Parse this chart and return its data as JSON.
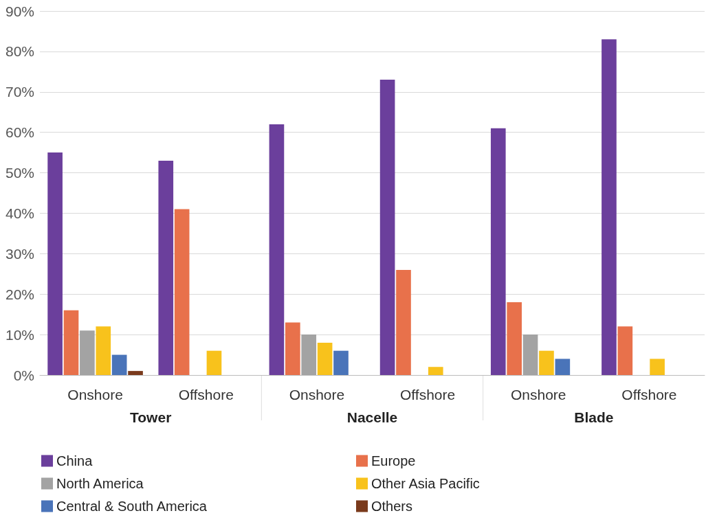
{
  "chart_data": {
    "type": "bar",
    "categories": [
      "Onshore",
      "Offshore",
      "Onshore",
      "Offshore",
      "Onshore",
      "Offshore"
    ],
    "annotations": [
      "Tower",
      "Nacelle",
      "Blade"
    ],
    "series": [
      {
        "name": "China",
        "color": "#6b3f9c",
        "values": [
          55,
          53,
          62,
          73,
          61,
          83
        ]
      },
      {
        "name": "Europe",
        "color": "#e8714b",
        "values": [
          16,
          41,
          13,
          26,
          18,
          12
        ]
      },
      {
        "name": "North America",
        "color": "#a3a3a3",
        "values": [
          11,
          null,
          10,
          null,
          10,
          null
        ]
      },
      {
        "name": "Other Asia Pacific",
        "color": "#f8c21c",
        "values": [
          12,
          6,
          8,
          2,
          6,
          4
        ]
      },
      {
        "name": "Central & South America",
        "color": "#4a74b9",
        "values": [
          5,
          null,
          6,
          null,
          4,
          null
        ]
      },
      {
        "name": "Others",
        "color": "#7a3a1c",
        "values": [
          1,
          null,
          null,
          null,
          null,
          null
        ]
      }
    ],
    "ylim": [
      0,
      90
    ],
    "yticks": [
      {
        "value": 0,
        "label": "0%"
      },
      {
        "value": 10,
        "label": "10%"
      },
      {
        "value": 20,
        "label": "20%"
      },
      {
        "value": 30,
        "label": "30%"
      },
      {
        "value": 40,
        "label": "40%"
      },
      {
        "value": 50,
        "label": "50%"
      },
      {
        "value": 60,
        "label": "60%"
      },
      {
        "value": 70,
        "label": "70%"
      },
      {
        "value": 80,
        "label": "80%"
      },
      {
        "value": 90,
        "label": "90%"
      }
    ],
    "grid": "y",
    "legend": "bottom"
  }
}
